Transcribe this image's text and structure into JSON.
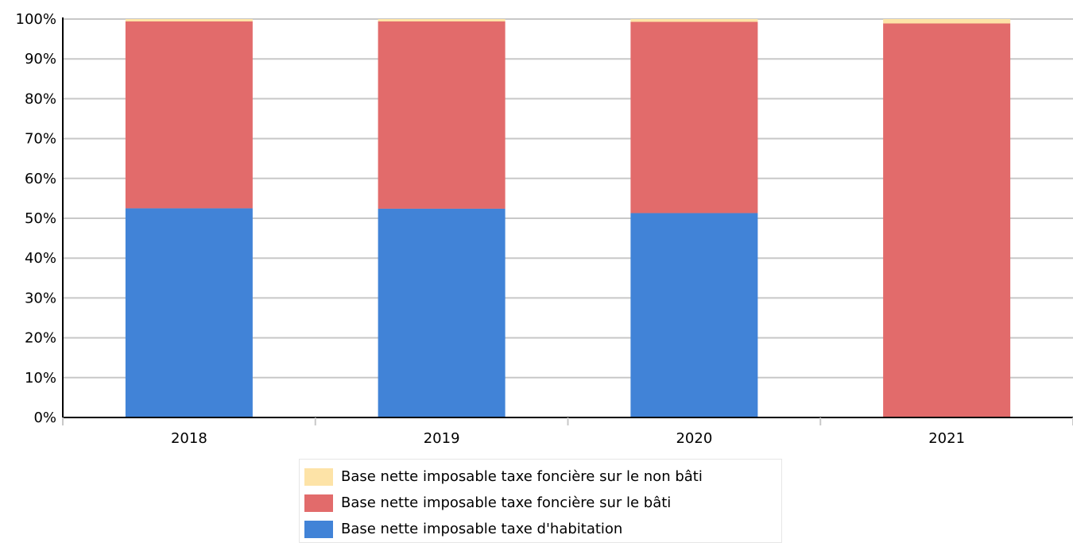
{
  "chart_data": {
    "type": "bar",
    "stacked": true,
    "percent": true,
    "categories": [
      "2018",
      "2019",
      "2020",
      "2021"
    ],
    "series": [
      {
        "name": "Base nette imposable taxe d'habitation",
        "color": "#4183d7",
        "values": [
          52.5,
          52.4,
          51.3,
          0
        ]
      },
      {
        "name": "Base nette imposable taxe foncière sur le bâti",
        "color": "#e26b6b",
        "values": [
          46.9,
          47.0,
          48.0,
          98.9
        ]
      },
      {
        "name": "Base nette imposable taxe foncière sur le non bâti",
        "color": "#fde3a7",
        "values": [
          0.6,
          0.6,
          0.7,
          1.1
        ]
      }
    ],
    "yticks": [
      "0%",
      "10%",
      "20%",
      "30%",
      "40%",
      "50%",
      "60%",
      "70%",
      "80%",
      "90%",
      "100%"
    ],
    "ylim": [
      0,
      100
    ],
    "grid": true,
    "legend_position": "bottom",
    "legend_order": [
      2,
      1,
      0
    ]
  }
}
